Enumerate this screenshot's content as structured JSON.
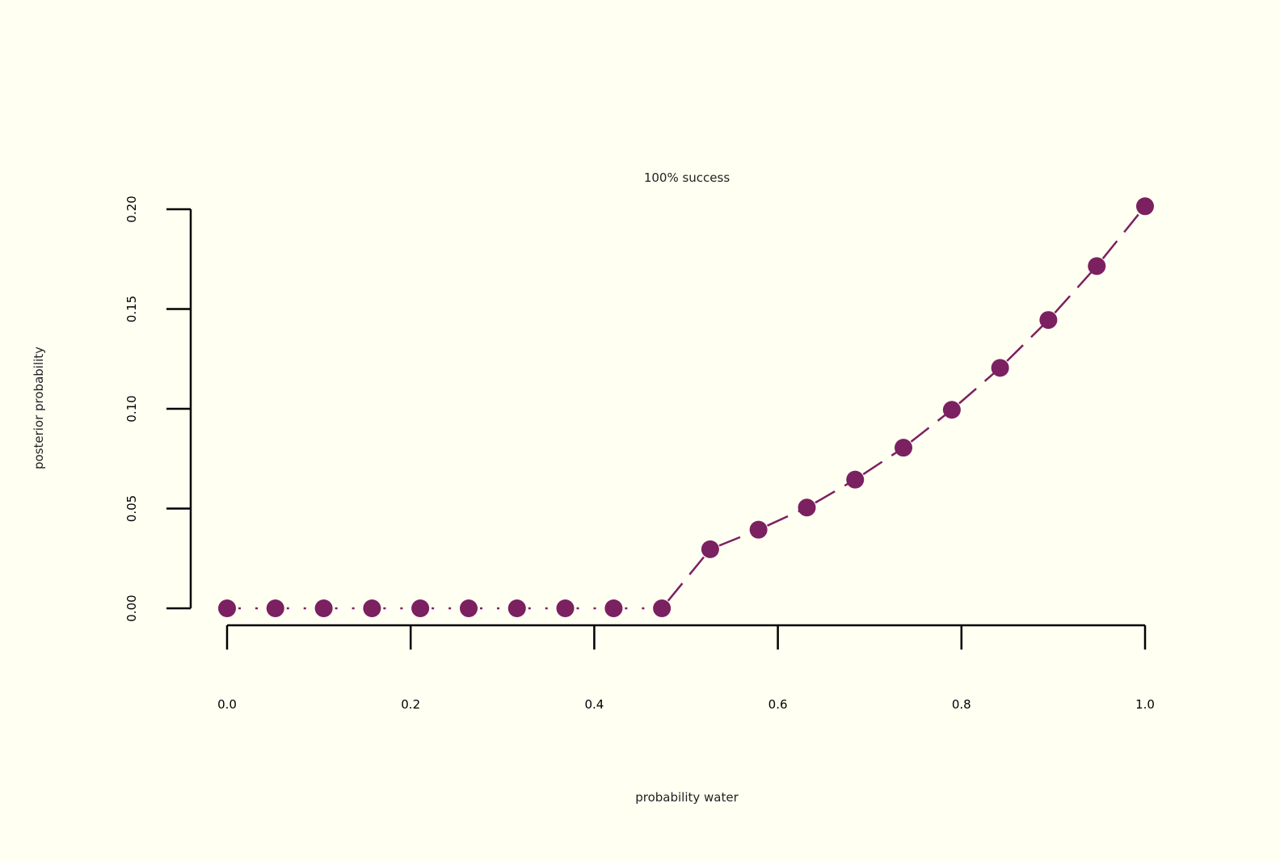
{
  "chart_data": {
    "type": "line",
    "title": "100% success",
    "xlabel": "probability water",
    "ylabel": "posterior probability",
    "xlim": [
      0,
      1
    ],
    "ylim": [
      0,
      0.2
    ],
    "x_ticks": [
      "0.0",
      "0.2",
      "0.4",
      "0.6",
      "0.8",
      "1.0"
    ],
    "y_ticks": [
      "0.00",
      "0.05",
      "0.10",
      "0.15",
      "0.20"
    ],
    "grid": false,
    "legend": "none",
    "color": "#7b2060",
    "series": [
      {
        "x": [
          0.0,
          0.0526,
          0.1053,
          0.1579,
          0.2105,
          0.2632,
          0.3158,
          0.3684,
          0.4211,
          0.4737,
          0.5263,
          0.5789,
          0.6316,
          0.6842,
          0.7368,
          0.7895,
          0.8421,
          0.8947,
          0.9474,
          1.0
        ],
        "values": [
          0.0,
          0.0,
          0.0,
          0.0,
          0.0,
          0.0,
          0.0,
          0.0,
          0.0,
          0.0,
          0.0296,
          0.0394,
          0.0505,
          0.0645,
          0.0805,
          0.0995,
          0.1205,
          0.1445,
          0.1715,
          0.2015
        ]
      }
    ]
  }
}
